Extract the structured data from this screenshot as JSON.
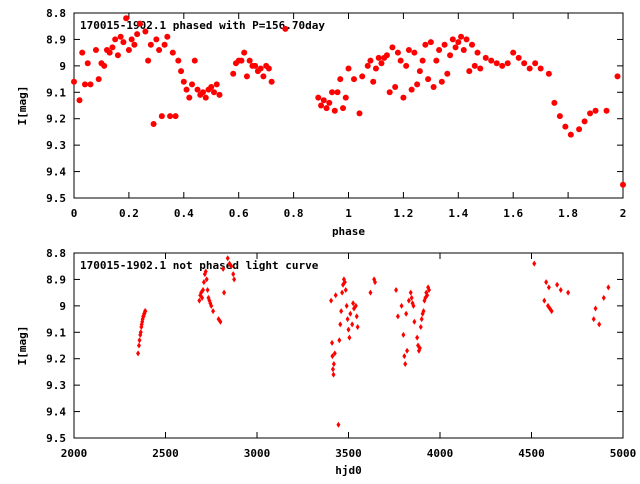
{
  "chart_data": [
    {
      "type": "scatter",
      "title": "170015-1902.1 phased with P=156.70day",
      "xlabel": "phase",
      "ylabel": "I[mag]",
      "xlim": [
        0,
        2
      ],
      "ylim": [
        8.8,
        9.5
      ],
      "y_inverted": true,
      "x_ticks": [
        "0",
        "0.2",
        "0.4",
        "0.6",
        "0.8",
        "1",
        "1.2",
        "1.4",
        "1.6",
        "1.8",
        "2"
      ],
      "y_ticks": [
        "8.8",
        "8.9",
        "9",
        "9.1",
        "9.2",
        "9.3",
        "9.4",
        "9.5"
      ],
      "grid": false,
      "marker": "filled-circle",
      "color": "#ff0000",
      "series": [
        {
          "x": [
            0.0,
            0.02,
            0.03,
            0.04,
            0.05,
            0.06,
            0.08,
            0.09,
            0.1,
            0.11,
            0.12,
            0.13,
            0.14,
            0.15,
            0.16,
            0.17,
            0.18,
            0.19,
            0.2,
            0.21,
            0.22,
            0.23,
            0.24,
            0.26,
            0.27,
            0.28,
            0.29,
            0.3,
            0.31,
            0.32,
            0.33,
            0.34,
            0.35,
            0.36,
            0.37,
            0.38,
            0.39,
            0.4,
            0.41,
            0.42,
            0.43,
            0.44,
            0.45,
            0.46,
            0.47,
            0.48,
            0.49,
            0.5,
            0.51,
            0.52,
            0.53,
            0.58,
            0.59,
            0.6,
            0.61,
            0.62,
            0.63,
            0.64,
            0.65,
            0.66,
            0.67,
            0.68,
            0.69,
            0.7,
            0.71,
            0.72,
            0.77,
            0.89,
            0.9,
            0.91,
            0.92,
            0.93,
            0.94,
            0.95,
            0.96,
            0.97,
            0.98,
            0.99,
            1.0,
            1.02,
            1.04,
            1.05,
            1.07,
            1.08,
            1.09,
            1.1,
            1.11,
            1.12,
            1.13,
            1.14,
            1.15,
            1.16,
            1.17,
            1.18,
            1.19,
            1.2,
            1.21,
            1.22,
            1.23,
            1.24,
            1.25,
            1.26,
            1.27,
            1.28,
            1.29,
            1.3,
            1.31,
            1.32,
            1.33,
            1.34,
            1.35,
            1.36,
            1.37,
            1.38,
            1.39,
            1.4,
            1.41,
            1.42,
            1.43,
            1.44,
            1.45,
            1.46,
            1.47,
            1.48,
            1.5,
            1.52,
            1.54,
            1.56,
            1.58,
            1.6,
            1.62,
            1.64,
            1.66,
            1.68,
            1.7,
            1.73,
            1.75,
            1.77,
            1.79,
            1.81,
            1.84,
            1.86,
            1.88,
            1.9,
            1.94,
            1.98,
            2.0
          ],
          "y": [
            9.06,
            9.13,
            8.95,
            9.07,
            8.99,
            9.07,
            8.94,
            9.05,
            8.99,
            9.0,
            8.94,
            8.95,
            8.93,
            8.9,
            8.96,
            8.89,
            8.91,
            8.82,
            8.94,
            8.9,
            8.92,
            8.88,
            8.84,
            8.87,
            8.98,
            8.92,
            9.22,
            8.9,
            8.94,
            9.19,
            8.92,
            8.89,
            9.19,
            8.95,
            9.19,
            8.98,
            9.02,
            9.06,
            9.09,
            9.12,
            9.07,
            8.98,
            9.09,
            9.11,
            9.1,
            9.12,
            9.09,
            9.08,
            9.1,
            9.07,
            9.11,
            9.03,
            8.99,
            8.98,
            8.98,
            8.95,
            9.04,
            8.98,
            9.0,
            9.0,
            9.02,
            9.01,
            9.04,
            9.0,
            9.01,
            9.06,
            8.86,
            9.12,
            9.15,
            9.13,
            9.16,
            9.14,
            9.1,
            9.17,
            9.1,
            9.05,
            9.16,
            9.12,
            9.01,
            9.05,
            9.18,
            9.04,
            9.0,
            8.98,
            9.06,
            9.01,
            8.97,
            8.99,
            8.97,
            8.96,
            9.1,
            8.93,
            9.08,
            8.95,
            8.98,
            9.12,
            9.0,
            8.94,
            9.09,
            8.95,
            9.07,
            9.02,
            8.98,
            8.92,
            9.05,
            8.91,
            9.08,
            8.98,
            8.94,
            9.06,
            8.92,
            9.03,
            8.96,
            8.9,
            8.93,
            8.91,
            8.89,
            8.94,
            8.9,
            9.02,
            8.92,
            9.0,
            8.95,
            9.01,
            8.97,
            8.98,
            8.99,
            9.0,
            8.99,
            8.95,
            8.97,
            8.99,
            9.01,
            8.99,
            9.01,
            9.03,
            9.14,
            9.19,
            9.23,
            9.26,
            9.24,
            9.21,
            9.18,
            9.17,
            9.17,
            9.04,
            9.45
          ]
        }
      ]
    },
    {
      "type": "scatter",
      "title": "170015-1902.1 not phased light curve",
      "xlabel": "hjd0",
      "ylabel": "I[mag]",
      "xlim": [
        2000,
        5000
      ],
      "ylim": [
        8.8,
        9.5
      ],
      "y_inverted": true,
      "x_ticks": [
        "2000",
        "2500",
        "3000",
        "3500",
        "4000",
        "4500",
        "5000"
      ],
      "y_ticks": [
        "8.8",
        "8.9",
        "9",
        "9.1",
        "9.2",
        "9.3",
        "9.4",
        "9.5"
      ],
      "grid": false,
      "marker": "small-diamond",
      "color": "#ff0000",
      "series": [
        {
          "x": [
            2350,
            2355,
            2358,
            2362,
            2365,
            2368,
            2370,
            2373,
            2375,
            2378,
            2380,
            2383,
            2385,
            2388,
            2390,
            2685,
            2690,
            2695,
            2700,
            2705,
            2710,
            2715,
            2720,
            2725,
            2730,
            2735,
            2740,
            2745,
            2750,
            2760,
            2790,
            2800,
            2815,
            2820,
            2840,
            2850,
            2860,
            2870,
            2875,
            3405,
            3410,
            3412,
            3415,
            3418,
            3420,
            3425,
            3430,
            3445,
            3450,
            3455,
            3460,
            3465,
            3470,
            3475,
            3480,
            3485,
            3490,
            3495,
            3500,
            3505,
            3510,
            3520,
            3525,
            3530,
            3540,
            3545,
            3550,
            3620,
            3640,
            3645,
            3760,
            3770,
            3790,
            3800,
            3805,
            3810,
            3815,
            3820,
            3830,
            3840,
            3845,
            3850,
            3855,
            3860,
            3875,
            3880,
            3885,
            3890,
            3895,
            3900,
            3905,
            3910,
            3915,
            3920,
            3925,
            3930,
            3935,
            3940,
            4515,
            4570,
            4580,
            4590,
            4595,
            4600,
            4610,
            4640,
            4660,
            4700,
            4840,
            4850,
            4870,
            4895,
            4920
          ],
          "y": [
            9.18,
            9.15,
            9.13,
            9.11,
            9.1,
            9.08,
            9.07,
            9.06,
            9.05,
            9.04,
            9.04,
            9.03,
            9.03,
            9.02,
            9.02,
            8.98,
            8.96,
            8.95,
            8.97,
            8.94,
            8.91,
            8.88,
            8.87,
            8.9,
            8.94,
            8.97,
            8.98,
            8.99,
            9.0,
            9.02,
            9.05,
            9.06,
            8.86,
            8.95,
            8.82,
            8.84,
            8.85,
            8.88,
            8.9,
            8.98,
            9.14,
            9.19,
            9.24,
            9.26,
            9.22,
            9.18,
            8.96,
            9.45,
            9.13,
            9.07,
            9.02,
            8.95,
            8.92,
            8.9,
            8.91,
            8.94,
            9.0,
            9.05,
            9.09,
            9.12,
            9.03,
            9.07,
            8.99,
            9.01,
            9.0,
            9.04,
            9.08,
            8.95,
            8.9,
            8.91,
            8.94,
            9.04,
            9.0,
            9.11,
            9.19,
            9.22,
            9.03,
            9.17,
            8.98,
            8.95,
            8.97,
            8.99,
            9.0,
            9.06,
            9.12,
            9.15,
            9.17,
            9.16,
            9.08,
            9.05,
            9.03,
            9.02,
            8.98,
            8.97,
            8.95,
            8.96,
            8.93,
            8.94,
            8.84,
            8.98,
            8.91,
            9.0,
            8.93,
            9.01,
            9.02,
            8.92,
            8.94,
            8.95,
            9.05,
            9.01,
            9.07,
            8.97,
            8.93
          ]
        }
      ]
    }
  ]
}
